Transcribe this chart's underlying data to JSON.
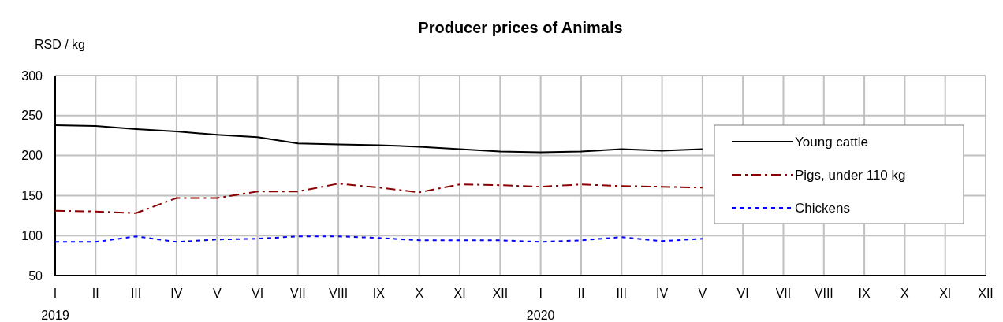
{
  "chart_data": {
    "type": "line",
    "title": "Producer prices of Animals",
    "ylabel": "RSD / kg",
    "categories": [
      "I\n2019",
      "II",
      "III",
      "IV",
      "V",
      "VI",
      "VII",
      "VIII",
      "IX",
      "X",
      "XI",
      "XII",
      "I\n2020",
      "II",
      "III",
      "IV",
      "V",
      "VI",
      "VII",
      "VIII",
      "IX",
      "X",
      "XI",
      "XII"
    ],
    "series": [
      {
        "name": "Young cattle",
        "color": "#000000",
        "line_style": "solid",
        "values": [
          238,
          237,
          233,
          230,
          226,
          223,
          215,
          214,
          213,
          211,
          208,
          205,
          204,
          205,
          208,
          206,
          208,
          null,
          null,
          null,
          null,
          null,
          null,
          null
        ]
      },
      {
        "name": "Pigs, under 110 kg",
        "color": "#8b0000",
        "line_style": "dashdot",
        "values": [
          131,
          130,
          128,
          147,
          147,
          155,
          155,
          165,
          160,
          154,
          164,
          163,
          161,
          164,
          162,
          161,
          160,
          null,
          null,
          null,
          null,
          null,
          null,
          null
        ]
      },
      {
        "name": "Chickens",
        "color": "#0000ff",
        "line_style": "dotted",
        "values": [
          92,
          92,
          99,
          92,
          95,
          96,
          99,
          99,
          97,
          94,
          94,
          94,
          92,
          94,
          98,
          93,
          96,
          null,
          null,
          null,
          null,
          null,
          null,
          null
        ]
      }
    ],
    "ylim": [
      50,
      300
    ],
    "yticks": [
      50,
      100,
      150,
      200,
      250,
      300
    ],
    "grid": true,
    "legend": "right",
    "marker": "none"
  }
}
